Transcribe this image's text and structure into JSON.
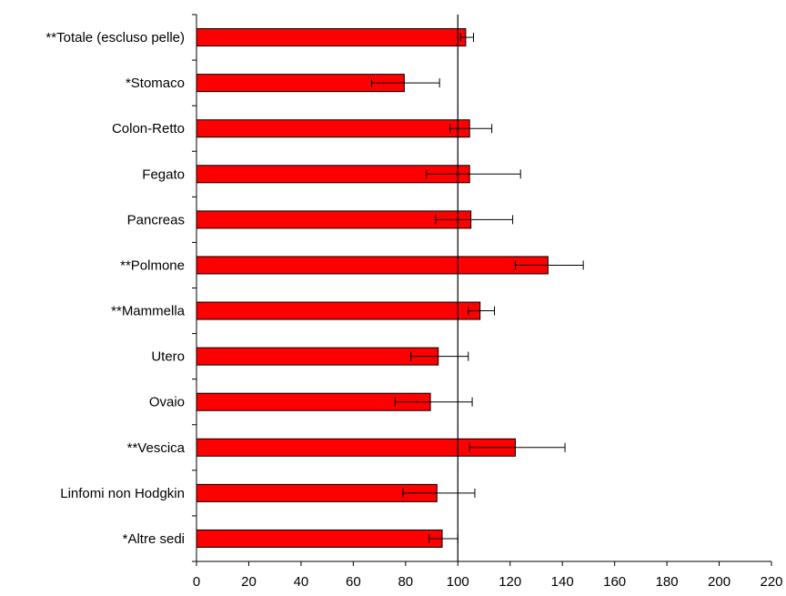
{
  "chart_data": {
    "type": "bar",
    "orientation": "horizontal",
    "title": "",
    "xlabel": "",
    "ylabel": "",
    "categories": [
      "**Totale (escluso pelle)",
      "*Stomaco",
      "Colon-Retto",
      "Fegato",
      "Pancreas",
      "**Polmone",
      "**Mammella",
      "Utero",
      "Ovaio",
      "**Vescica",
      "Linfomi non Hodgkin",
      "*Altre sedi"
    ],
    "values": [
      103,
      79.5,
      104.5,
      104.5,
      105,
      134.5,
      108.5,
      92.5,
      89.5,
      122,
      92,
      94
    ],
    "error_low": [
      101,
      67,
      97,
      88,
      91.5,
      122,
      104,
      82,
      76,
      104.5,
      79,
      89
    ],
    "error_high": [
      106,
      93,
      113,
      124,
      121,
      148,
      114,
      104,
      105.5,
      141,
      106.5,
      100
    ],
    "xlim": [
      0,
      220
    ],
    "xticks": [
      0,
      20,
      40,
      60,
      80,
      100,
      120,
      140,
      160,
      180,
      200,
      220
    ],
    "reference_line": 100,
    "grid": false,
    "legend": "none",
    "bar_color": "#ff0000",
    "bar_edge_color": "#000000"
  }
}
